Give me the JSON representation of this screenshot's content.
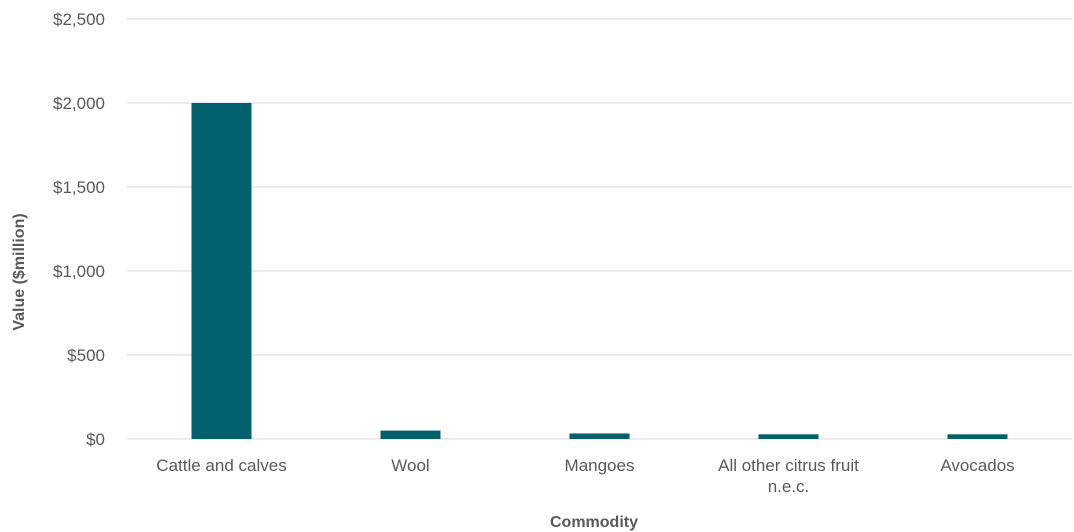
{
  "chart_data": {
    "type": "bar",
    "title": "",
    "xlabel": "Commodity",
    "ylabel": "Value ($million)",
    "categories": [
      [
        "Cattle and calves"
      ],
      [
        "Wool"
      ],
      [
        "Mangoes"
      ],
      [
        "All other citrus fruit",
        "n.e.c."
      ],
      [
        "Avocados"
      ]
    ],
    "values": [
      2000,
      50,
      33,
      28,
      28
    ],
    "ylim": [
      0,
      2500
    ],
    "yticks": [
      0,
      500,
      1000,
      1500,
      2000,
      2500
    ],
    "ytick_labels": [
      "$0",
      "$500",
      "$1,000",
      "$1,500",
      "$2,000",
      "$2,500"
    ],
    "grid": true,
    "legend": "none",
    "bar_color": "#00606B",
    "grid_color": "#D9D9D9"
  }
}
